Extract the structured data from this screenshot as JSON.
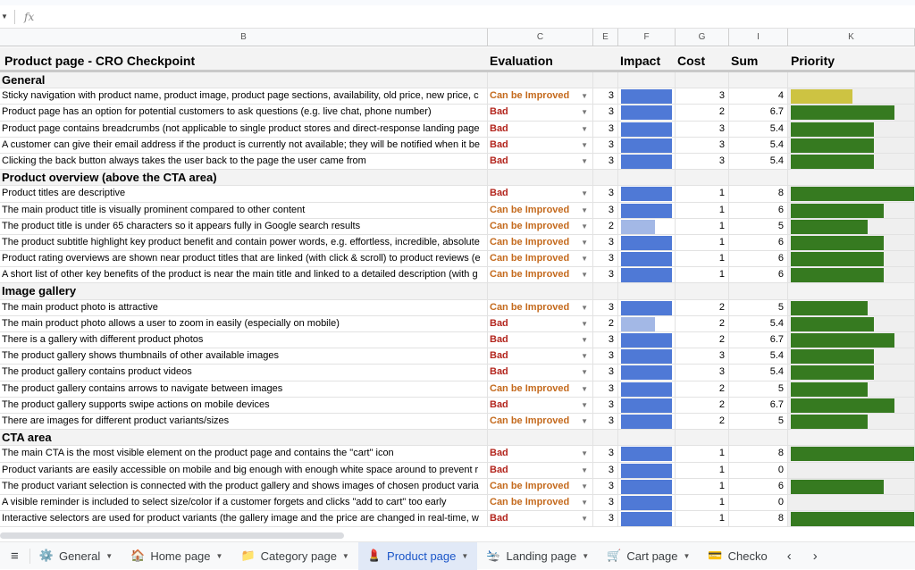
{
  "formula_bar": {
    "fx_label": "fx"
  },
  "columns": [
    "B",
    "C",
    "E",
    "F",
    "G",
    "I",
    "K"
  ],
  "header": {
    "title": "Product page - CRO Checkpoint",
    "evaluation": "Evaluation",
    "impact": "Impact",
    "cost": "Cost",
    "sum": "Sum",
    "priority": "Priority"
  },
  "colors": {
    "impact": "#4f79d6",
    "impact_low": "#a3b8e6",
    "priority_high": "#367a20",
    "priority_mid": "#cdc342",
    "bad": "#b3261e",
    "can_be_improved": "#c46a1d"
  },
  "sections": [
    {
      "title": "General",
      "rows": [
        [
          "Sticky navigation with product name, product image, product page sections, availability, old price, new price, c",
          "Can be Improved",
          3,
          3,
          4
        ],
        [
          "Product page has an option for potential customers to ask questions (e.g. live chat, phone number)",
          "Bad",
          3,
          2,
          6.7
        ],
        [
          "Product page contains breadcrumbs (not applicable to single product stores and direct-response landing page",
          "Bad",
          3,
          3,
          5.4
        ],
        [
          "A customer can give their email address if the product is currently not available; they will be notified when it be",
          "Bad",
          3,
          3,
          5.4
        ],
        [
          "Clicking the back button always takes the user back to the page the user came from",
          "Bad",
          3,
          3,
          5.4
        ]
      ]
    },
    {
      "title": "Product overview (above the CTA area)",
      "rows": [
        [
          "Product titles are descriptive",
          "Bad",
          3,
          1,
          8
        ],
        [
          "The main product title is visually prominent compared to other content",
          "Can be Improved",
          3,
          1,
          6
        ],
        [
          "The product title is under 65 characters so it appears fully in Google search results",
          "Can be Improved",
          2,
          1,
          5
        ],
        [
          "The product subtitle highlight key product benefit and contain power words, e.g. effortless, incredible, absolute",
          "Can be Improved",
          3,
          1,
          6
        ],
        [
          "Product rating overviews are shown near product titles that are linked (with click & scroll) to product reviews (e",
          "Can be Improved",
          3,
          1,
          6
        ],
        [
          "A short list of other key benefits of the product is near the main title and linked to a detailed description (with g",
          "Can be Improved",
          3,
          1,
          6
        ]
      ]
    },
    {
      "title": "Image gallery",
      "rows": [
        [
          "The main product photo is attractive",
          "Can be Improved",
          3,
          2,
          5
        ],
        [
          "The main product photo allows a user to zoom in easily (especially on mobile)",
          "Bad",
          2,
          2,
          5.4
        ],
        [
          "There is a gallery with different product photos",
          "Bad",
          3,
          2,
          6.7
        ],
        [
          "The product gallery shows thumbnails of other available images",
          "Bad",
          3,
          3,
          5.4
        ],
        [
          "The product gallery contains product videos",
          "Bad",
          3,
          3,
          5.4
        ],
        [
          "The product gallery contains arrows to navigate between images",
          "Can be Improved",
          3,
          2,
          5
        ],
        [
          "The product gallery supports swipe actions on mobile devices",
          "Bad",
          3,
          2,
          6.7
        ],
        [
          "There are images for different product variants/sizes",
          "Can be Improved",
          3,
          2,
          5
        ]
      ]
    },
    {
      "title": "CTA area",
      "rows": [
        [
          "The main CTA is the most visible element on the product page and contains the \"cart\" icon",
          "Bad",
          3,
          1,
          8
        ],
        [
          "Product variants are easily accessible on mobile and big enough with enough white space around to prevent r",
          "Bad",
          3,
          1,
          0
        ],
        [
          "The product variant selection is connected with the product gallery and shows images of chosen product varia",
          "Can be Improved",
          3,
          1,
          6
        ],
        [
          "A visible reminder is included to select size/color if a customer forgets and clicks \"add to cart\" too early",
          "Can be Improved",
          3,
          1,
          0
        ],
        [
          "Interactive selectors are used for product variants (the gallery image and the price are changed in real-time, w",
          "Bad",
          3,
          1,
          8
        ]
      ]
    }
  ],
  "tabs": [
    {
      "icon": "⚙️",
      "label": "General",
      "active": false
    },
    {
      "icon": "🏠",
      "label": "Home page",
      "active": false
    },
    {
      "icon": "📁",
      "label": "Category page",
      "active": false
    },
    {
      "icon": "💄",
      "label": "Product page",
      "active": true
    },
    {
      "icon": "🛬",
      "label": "Landing page",
      "active": false
    },
    {
      "icon": "🛒",
      "label": "Cart page",
      "active": false
    },
    {
      "icon": "💳",
      "label": "Checko",
      "active": false
    }
  ]
}
